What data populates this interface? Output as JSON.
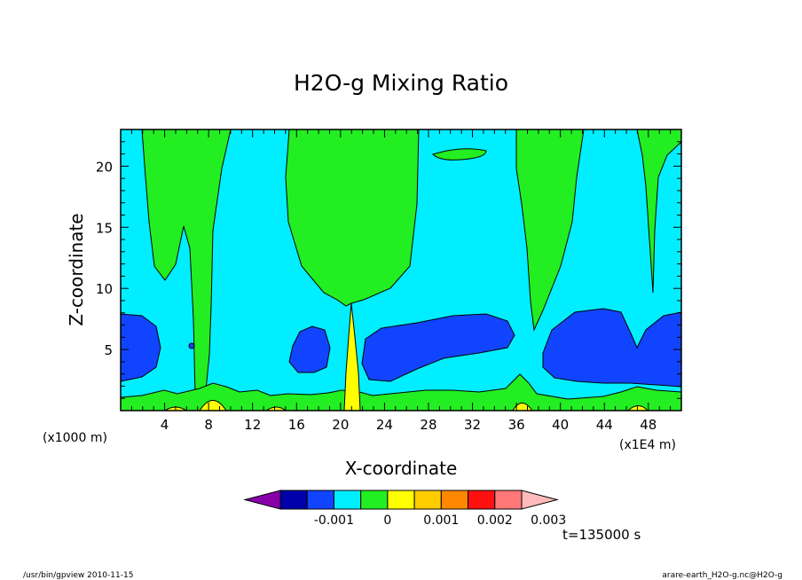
{
  "chart_data": {
    "type": "heatmap",
    "title": "H2O-g Mixing Ratio",
    "xlabel": "X-coordinate",
    "ylabel": "Z-coordinate",
    "x_unit_label": "(x1000 m)",
    "x_scale_label": "(x1E4 m)",
    "xlim": [
      0,
      51
    ],
    "ylim": [
      0,
      23
    ],
    "x_ticks": [
      4,
      8,
      12,
      16,
      20,
      24,
      28,
      32,
      36,
      40,
      44,
      48
    ],
    "y_ticks": [
      5,
      10,
      15,
      20
    ],
    "colorbar": {
      "levels": [
        -0.0025,
        -0.002,
        -0.0015,
        -0.001,
        -0.0005,
        0,
        0.0005,
        0.001,
        0.0015,
        0.002,
        0.0025,
        0.003,
        0.0035
      ],
      "tick_labels": [
        "-0.001",
        "0",
        "0.001",
        "0.002",
        "0.003"
      ],
      "tick_values": [
        -0.001,
        0,
        0.001,
        0.002,
        0.003
      ],
      "colors": [
        "#8800aa",
        "#0000aa",
        "#1144ff",
        "#00eeff",
        "#22ee22",
        "#ffff00",
        "#ffcc00",
        "#ff8800",
        "#ff1111",
        "#ff7777",
        "#ffbbbb"
      ]
    },
    "fields": {
      "background_level_color": "#00eeff",
      "regions": [
        {
          "label": "green",
          "value": 0.0002
        },
        {
          "label": "blue",
          "value": -0.0007
        },
        {
          "label": "yellow",
          "value": 0.0007
        }
      ]
    }
  },
  "time_label": "t=135000 s",
  "footer": {
    "left": "/usr/bin/gpview   2010-11-15",
    "right": "arare-earth_H2O-g.nc@H2O-g"
  },
  "colors": {
    "cyan": "#00eeff",
    "green": "#22ee22",
    "blue": "#1144ff",
    "yellow": "#ffff00"
  }
}
